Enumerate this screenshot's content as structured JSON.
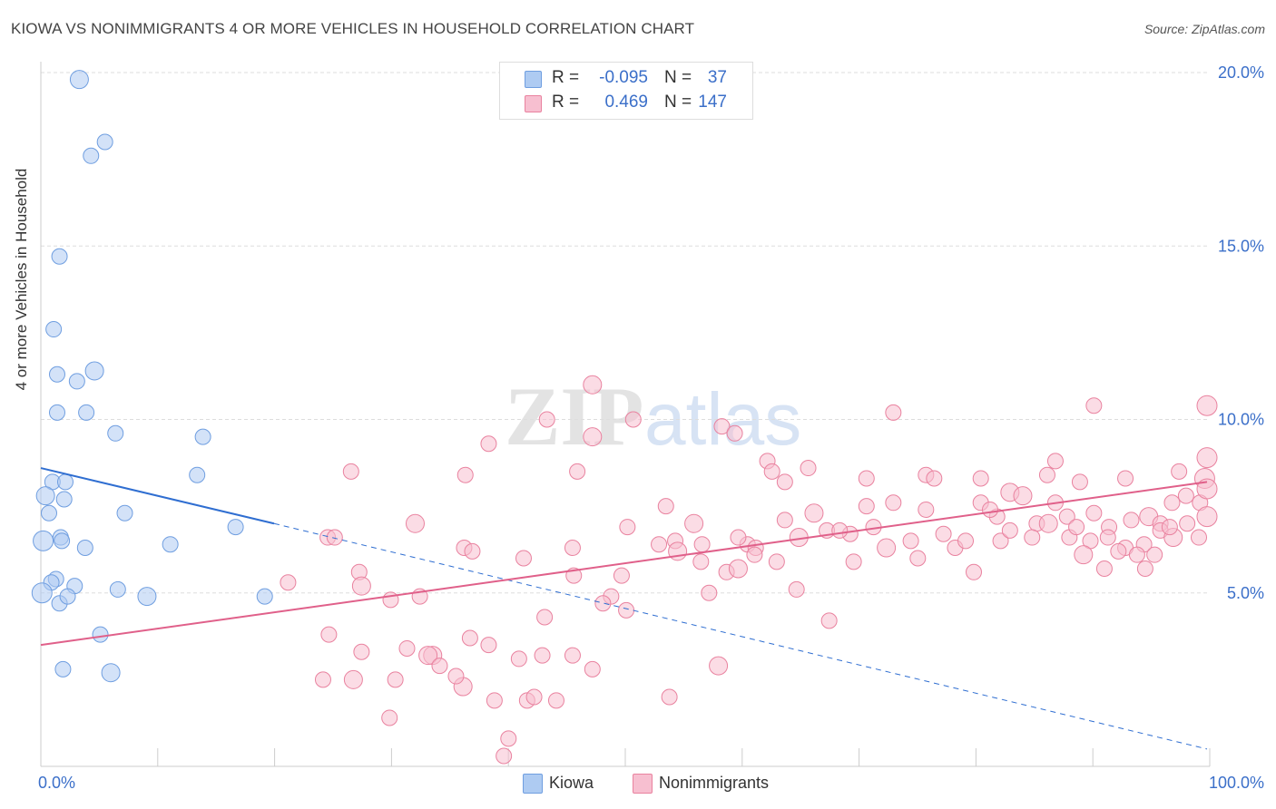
{
  "title": "KIOWA VS NONIMMIGRANTS 4 OR MORE VEHICLES IN HOUSEHOLD CORRELATION CHART",
  "source": "Source: ZipAtlas.com",
  "watermark": {
    "zip": "ZIP",
    "atlas": "atlas"
  },
  "legend": {
    "rows": [
      {
        "r_label": "R =",
        "r_value": "-0.095",
        "n_label": "N =",
        "n_value": "37",
        "color": "#aecbf2",
        "border": "#6f9ee0"
      },
      {
        "r_label": "R =",
        "r_value": "0.469",
        "n_label": "N =",
        "n_value": "147",
        "color": "#f7bfd0",
        "border": "#e9829f"
      }
    ]
  },
  "bottom_legend": {
    "kiowa": "Kiowa",
    "nonimmigrants": "Nonimmigrants"
  },
  "chart_data": {
    "type": "scatter",
    "title": "KIOWA VS NONIMMIGRANTS 4 OR MORE VEHICLES IN HOUSEHOLD CORRELATION CHART",
    "xlabel": "",
    "ylabel": "4 or more Vehicles in Household",
    "xlim": [
      0,
      100
    ],
    "ylim": [
      0,
      20
    ],
    "x_tick_labels": {
      "left": "0.0%",
      "right": "100.0%"
    },
    "y_ticks": [
      5,
      10,
      15,
      20
    ],
    "y_tick_labels": [
      "5.0%",
      "10.0%",
      "15.0%",
      "20.0%"
    ],
    "grid": true,
    "series": [
      {
        "name": "Kiowa",
        "color": "#aecbf2",
        "stroke": "#6f9ee0",
        "trend": {
          "x1": 0,
          "y1": 8.6,
          "x2": 20,
          "y2": 7.0,
          "dash_to_x": 100,
          "dash_to_y": 0.5,
          "color": "#2f6ed1"
        },
        "points": [
          [
            3.3,
            19.8
          ],
          [
            5.5,
            18.0
          ],
          [
            4.3,
            17.6
          ],
          [
            1.6,
            14.7
          ],
          [
            1.1,
            12.6
          ],
          [
            1.4,
            11.3
          ],
          [
            3.1,
            11.1
          ],
          [
            4.6,
            11.4
          ],
          [
            1.4,
            10.2
          ],
          [
            3.9,
            10.2
          ],
          [
            6.4,
            9.6
          ],
          [
            13.9,
            9.5
          ],
          [
            13.4,
            8.4
          ],
          [
            1.0,
            8.2
          ],
          [
            0.4,
            7.8
          ],
          [
            2.1,
            8.2
          ],
          [
            2.0,
            7.7
          ],
          [
            0.7,
            7.3
          ],
          [
            7.2,
            7.3
          ],
          [
            16.7,
            6.9
          ],
          [
            1.7,
            6.6
          ],
          [
            0.2,
            6.5
          ],
          [
            3.8,
            6.3
          ],
          [
            11.1,
            6.4
          ],
          [
            1.3,
            5.4
          ],
          [
            0.9,
            5.3
          ],
          [
            2.9,
            5.2
          ],
          [
            6.6,
            5.1
          ],
          [
            9.1,
            4.9
          ],
          [
            1.6,
            4.7
          ],
          [
            2.3,
            4.9
          ],
          [
            19.2,
            4.9
          ],
          [
            0.1,
            5.0
          ],
          [
            5.1,
            3.8
          ],
          [
            1.9,
            2.8
          ],
          [
            6.0,
            2.7
          ],
          [
            1.8,
            6.5
          ]
        ]
      },
      {
        "name": "Nonimmigrants",
        "color": "#f7bfd0",
        "stroke": "#e9829f",
        "trend": {
          "x1": 0,
          "y1": 3.5,
          "x2": 100,
          "y2": 8.2,
          "color": "#e0608a"
        },
        "points": [
          [
            47.3,
            11.0
          ],
          [
            43.4,
            10.0
          ],
          [
            50.8,
            10.0
          ],
          [
            58.4,
            9.8
          ],
          [
            73.1,
            10.2
          ],
          [
            90.3,
            10.4
          ],
          [
            38.4,
            9.3
          ],
          [
            47.3,
            9.5
          ],
          [
            59.5,
            9.6
          ],
          [
            100,
            10.4
          ],
          [
            26.6,
            8.5
          ],
          [
            36.4,
            8.4
          ],
          [
            46.0,
            8.5
          ],
          [
            53.6,
            7.5
          ],
          [
            56.0,
            7.0
          ],
          [
            62.3,
            8.8
          ],
          [
            63.8,
            8.2
          ],
          [
            65.8,
            8.6
          ],
          [
            70.8,
            8.3
          ],
          [
            75.9,
            8.4
          ],
          [
            80.6,
            8.3
          ],
          [
            83.1,
            7.9
          ],
          [
            87.0,
            8.8
          ],
          [
            89.1,
            8.2
          ],
          [
            93.0,
            8.3
          ],
          [
            97.6,
            8.5
          ],
          [
            100,
            8.9
          ],
          [
            99.8,
            8.3
          ],
          [
            32.1,
            7.0
          ],
          [
            24.6,
            6.6
          ],
          [
            50.3,
            6.9
          ],
          [
            54.4,
            6.5
          ],
          [
            56.7,
            6.4
          ],
          [
            60.6,
            6.4
          ],
          [
            63.1,
            5.9
          ],
          [
            66.3,
            7.3
          ],
          [
            70.8,
            7.5
          ],
          [
            73.1,
            7.6
          ],
          [
            75.9,
            7.4
          ],
          [
            77.4,
            6.7
          ],
          [
            80.6,
            7.6
          ],
          [
            82.0,
            7.2
          ],
          [
            84.2,
            7.8
          ],
          [
            85.4,
            7.0
          ],
          [
            87.0,
            7.6
          ],
          [
            88.0,
            7.2
          ],
          [
            90.3,
            7.3
          ],
          [
            91.6,
            6.9
          ],
          [
            93.5,
            7.1
          ],
          [
            95.0,
            7.2
          ],
          [
            96.0,
            7.0
          ],
          [
            97.0,
            7.6
          ],
          [
            98.2,
            7.8
          ],
          [
            99.4,
            7.6
          ],
          [
            100,
            8.0
          ],
          [
            27.3,
            5.6
          ],
          [
            27.5,
            5.2
          ],
          [
            30.0,
            4.8
          ],
          [
            32.5,
            4.9
          ],
          [
            36.3,
            6.3
          ],
          [
            41.4,
            6.0
          ],
          [
            45.7,
            5.5
          ],
          [
            49.8,
            5.5
          ],
          [
            54.6,
            6.2
          ],
          [
            56.6,
            5.9
          ],
          [
            58.8,
            5.6
          ],
          [
            61.3,
            6.3
          ],
          [
            64.8,
            5.1
          ],
          [
            67.4,
            6.8
          ],
          [
            69.4,
            6.7
          ],
          [
            72.5,
            6.3
          ],
          [
            75.2,
            6.0
          ],
          [
            78.4,
            6.3
          ],
          [
            80.0,
            5.6
          ],
          [
            82.3,
            6.5
          ],
          [
            83.1,
            6.8
          ],
          [
            85.0,
            6.6
          ],
          [
            86.4,
            7.0
          ],
          [
            88.2,
            6.6
          ],
          [
            90.0,
            6.5
          ],
          [
            91.5,
            6.6
          ],
          [
            93.0,
            6.3
          ],
          [
            94.6,
            6.4
          ],
          [
            96.0,
            6.8
          ],
          [
            97.1,
            6.6
          ],
          [
            98.3,
            7.0
          ],
          [
            99.3,
            6.6
          ],
          [
            100,
            7.2
          ],
          [
            21.2,
            5.3
          ],
          [
            25.2,
            6.6
          ],
          [
            31.4,
            3.4
          ],
          [
            33.6,
            3.2
          ],
          [
            36.8,
            3.7
          ],
          [
            38.4,
            3.5
          ],
          [
            41.0,
            3.1
          ],
          [
            43.0,
            3.2
          ],
          [
            45.6,
            3.2
          ],
          [
            47.3,
            2.8
          ],
          [
            36.2,
            2.3
          ],
          [
            38.9,
            1.9
          ],
          [
            41.7,
            1.9
          ],
          [
            42.3,
            2.0
          ],
          [
            44.2,
            1.9
          ],
          [
            40.1,
            0.8
          ],
          [
            39.7,
            0.3
          ],
          [
            33.2,
            3.2
          ],
          [
            34.2,
            2.9
          ],
          [
            35.6,
            2.6
          ],
          [
            30.4,
            2.5
          ],
          [
            27.5,
            3.3
          ],
          [
            24.7,
            3.8
          ],
          [
            24.2,
            2.5
          ],
          [
            26.8,
            2.5
          ],
          [
            29.9,
            1.4
          ],
          [
            43.2,
            4.3
          ],
          [
            48.9,
            4.9
          ],
          [
            50.2,
            4.5
          ],
          [
            48.2,
            4.7
          ],
          [
            57.3,
            5.0
          ],
          [
            59.8,
            5.7
          ],
          [
            61.2,
            6.1
          ],
          [
            69.7,
            5.9
          ],
          [
            71.4,
            6.9
          ],
          [
            53.0,
            6.4
          ],
          [
            45.6,
            6.3
          ],
          [
            62.7,
            8.5
          ],
          [
            58.1,
            2.9
          ],
          [
            67.6,
            4.2
          ],
          [
            68.5,
            6.8
          ],
          [
            74.6,
            6.5
          ],
          [
            79.3,
            6.5
          ],
          [
            81.4,
            7.4
          ],
          [
            88.8,
            6.9
          ],
          [
            89.4,
            6.1
          ],
          [
            92.4,
            6.2
          ],
          [
            94.0,
            6.1
          ],
          [
            95.5,
            6.1
          ],
          [
            96.8,
            6.9
          ],
          [
            63.8,
            7.1
          ],
          [
            59.8,
            6.6
          ],
          [
            65.0,
            6.6
          ],
          [
            76.6,
            8.3
          ],
          [
            86.3,
            8.4
          ],
          [
            91.2,
            5.7
          ],
          [
            94.7,
            5.7
          ],
          [
            37.0,
            6.2
          ],
          [
            53.9,
            2.0
          ]
        ]
      }
    ]
  }
}
